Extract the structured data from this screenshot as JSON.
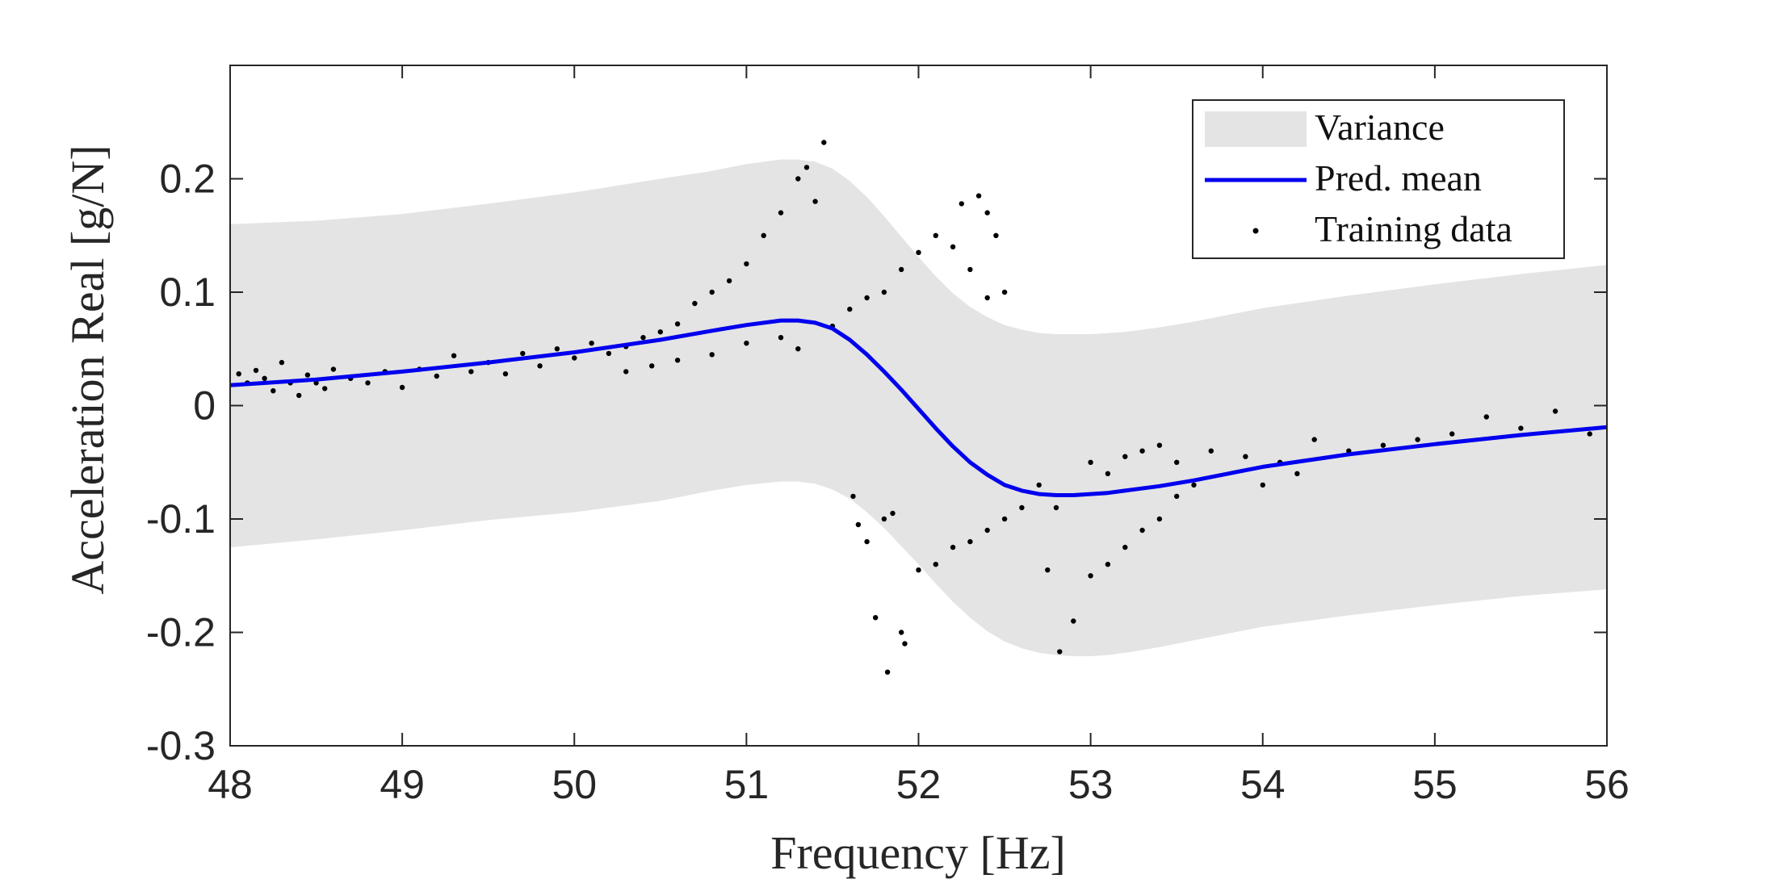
{
  "chart_data": {
    "type": "line",
    "title": "",
    "xlabel": "Frequency [Hz]",
    "ylabel": "Acceleration Real [g/N]",
    "xlim": [
      48,
      56
    ],
    "ylim": [
      -0.3,
      0.3
    ],
    "x_ticks": [
      48,
      49,
      50,
      51,
      52,
      53,
      54,
      55,
      56
    ],
    "y_ticks": [
      0.2,
      0.1,
      0,
      -0.1,
      -0.2,
      -0.3
    ],
    "y_tick_labels": [
      "0.2",
      "0.1",
      "0",
      "-0.1",
      "-0.2",
      "-0.3"
    ],
    "grid": false,
    "legend_position": "top-right",
    "colors": {
      "variance": "#e4e4e4",
      "mean": "#0000ee",
      "data": "#000000",
      "axes": "#262626"
    },
    "legend": [
      {
        "label": "Variance",
        "kind": "patch"
      },
      {
        "label": "Pred. mean",
        "kind": "line"
      },
      {
        "label": "Training data",
        "kind": "marker"
      }
    ],
    "series": [
      {
        "name": "Pred. mean",
        "x": [
          48.0,
          48.5,
          49.0,
          49.5,
          50.0,
          50.5,
          50.8,
          51.0,
          51.2,
          51.3,
          51.4,
          51.5,
          51.6,
          51.7,
          51.8,
          51.9,
          52.0,
          52.1,
          52.2,
          52.3,
          52.4,
          52.5,
          52.6,
          52.7,
          52.8,
          52.9,
          53.0,
          53.1,
          53.2,
          53.4,
          53.6,
          53.8,
          54.0,
          54.5,
          55.0,
          55.5,
          56.0
        ],
        "y": [
          0.018,
          0.023,
          0.03,
          0.038,
          0.047,
          0.058,
          0.066,
          0.071,
          0.075,
          0.075,
          0.073,
          0.068,
          0.058,
          0.045,
          0.03,
          0.014,
          -0.003,
          -0.02,
          -0.036,
          -0.05,
          -0.061,
          -0.07,
          -0.075,
          -0.078,
          -0.079,
          -0.079,
          -0.078,
          -0.077,
          -0.075,
          -0.071,
          -0.066,
          -0.06,
          -0.054,
          -0.043,
          -0.034,
          -0.026,
          -0.019
        ]
      },
      {
        "name": "Variance",
        "x": [
          48.0,
          48.5,
          49.0,
          49.5,
          50.0,
          50.5,
          50.8,
          51.0,
          51.2,
          51.3,
          51.4,
          51.5,
          51.6,
          51.7,
          51.8,
          51.9,
          52.0,
          52.1,
          52.2,
          52.3,
          52.4,
          52.5,
          52.6,
          52.7,
          52.8,
          52.9,
          53.0,
          53.1,
          53.2,
          53.4,
          53.6,
          53.8,
          54.0,
          54.5,
          55.0,
          55.5,
          56.0
        ],
        "upper": [
          0.16,
          0.163,
          0.169,
          0.178,
          0.188,
          0.2,
          0.207,
          0.213,
          0.217,
          0.217,
          0.215,
          0.209,
          0.198,
          0.184,
          0.167,
          0.149,
          0.131,
          0.114,
          0.099,
          0.087,
          0.078,
          0.071,
          0.067,
          0.064,
          0.063,
          0.063,
          0.063,
          0.064,
          0.065,
          0.069,
          0.074,
          0.08,
          0.086,
          0.097,
          0.107,
          0.116,
          0.124
        ],
        "lower": [
          -0.125,
          -0.118,
          -0.11,
          -0.101,
          -0.094,
          -0.084,
          -0.075,
          -0.07,
          -0.067,
          -0.067,
          -0.069,
          -0.074,
          -0.082,
          -0.094,
          -0.108,
          -0.124,
          -0.14,
          -0.157,
          -0.173,
          -0.187,
          -0.199,
          -0.208,
          -0.214,
          -0.218,
          -0.22,
          -0.221,
          -0.221,
          -0.22,
          -0.218,
          -0.213,
          -0.207,
          -0.201,
          -0.195,
          -0.185,
          -0.176,
          -0.168,
          -0.162
        ]
      },
      {
        "name": "Training data",
        "points": [
          [
            48.05,
            0.028
          ],
          [
            48.1,
            0.02
          ],
          [
            48.15,
            0.031
          ],
          [
            48.2,
            0.024
          ],
          [
            48.25,
            0.013
          ],
          [
            48.3,
            0.038
          ],
          [
            48.35,
            0.02
          ],
          [
            48.4,
            0.009
          ],
          [
            48.45,
            0.027
          ],
          [
            48.5,
            0.02
          ],
          [
            48.55,
            0.015
          ],
          [
            48.6,
            0.032
          ],
          [
            48.7,
            0.024
          ],
          [
            48.8,
            0.02
          ],
          [
            48.9,
            0.03
          ],
          [
            49.0,
            0.016
          ],
          [
            49.1,
            0.032
          ],
          [
            49.2,
            0.026
          ],
          [
            49.3,
            0.044
          ],
          [
            49.4,
            0.03
          ],
          [
            49.5,
            0.038
          ],
          [
            49.6,
            0.028
          ],
          [
            49.7,
            0.046
          ],
          [
            49.8,
            0.035
          ],
          [
            49.9,
            0.05
          ],
          [
            50.0,
            0.042
          ],
          [
            50.1,
            0.055
          ],
          [
            50.2,
            0.046
          ],
          [
            50.3,
            0.052
          ],
          [
            50.4,
            0.06
          ],
          [
            50.5,
            0.065
          ],
          [
            50.6,
            0.072
          ],
          [
            50.7,
            0.09
          ],
          [
            50.8,
            0.1
          ],
          [
            50.9,
            0.11
          ],
          [
            51.0,
            0.125
          ],
          [
            51.1,
            0.15
          ],
          [
            51.2,
            0.17
          ],
          [
            51.3,
            0.2
          ],
          [
            51.35,
            0.21
          ],
          [
            51.4,
            0.18
          ],
          [
            51.45,
            0.232
          ],
          [
            50.3,
            0.03
          ],
          [
            50.45,
            0.035
          ],
          [
            50.6,
            0.04
          ],
          [
            50.8,
            0.045
          ],
          [
            51.0,
            0.055
          ],
          [
            51.2,
            0.06
          ],
          [
            51.3,
            0.05
          ],
          [
            51.5,
            0.07
          ],
          [
            51.6,
            0.085
          ],
          [
            51.7,
            0.095
          ],
          [
            51.8,
            0.1
          ],
          [
            51.9,
            0.12
          ],
          [
            52.0,
            0.135
          ],
          [
            52.1,
            0.15
          ],
          [
            52.2,
            0.14
          ],
          [
            52.3,
            0.12
          ],
          [
            52.4,
            0.095
          ],
          [
            52.5,
            0.1
          ],
          [
            52.25,
            0.178
          ],
          [
            52.35,
            0.185
          ],
          [
            52.4,
            0.17
          ],
          [
            52.45,
            0.15
          ],
          [
            51.62,
            -0.08
          ],
          [
            51.65,
            -0.105
          ],
          [
            51.7,
            -0.12
          ],
          [
            51.75,
            -0.187
          ],
          [
            51.8,
            -0.1
          ],
          [
            51.85,
            -0.095
          ],
          [
            51.9,
            -0.2
          ],
          [
            51.92,
            -0.21
          ],
          [
            51.82,
            -0.235
          ],
          [
            52.0,
            -0.145
          ],
          [
            52.1,
            -0.14
          ],
          [
            52.2,
            -0.125
          ],
          [
            52.3,
            -0.12
          ],
          [
            52.4,
            -0.11
          ],
          [
            52.5,
            -0.1
          ],
          [
            52.6,
            -0.09
          ],
          [
            52.7,
            -0.07
          ],
          [
            52.8,
            -0.09
          ],
          [
            52.75,
            -0.145
          ],
          [
            52.82,
            -0.217
          ],
          [
            52.9,
            -0.19
          ],
          [
            53.0,
            -0.15
          ],
          [
            53.1,
            -0.14
          ],
          [
            53.2,
            -0.125
          ],
          [
            53.3,
            -0.11
          ],
          [
            53.4,
            -0.1
          ],
          [
            53.5,
            -0.08
          ],
          [
            53.6,
            -0.07
          ],
          [
            53.0,
            -0.05
          ],
          [
            53.1,
            -0.06
          ],
          [
            53.2,
            -0.045
          ],
          [
            53.3,
            -0.04
          ],
          [
            53.4,
            -0.035
          ],
          [
            53.5,
            -0.05
          ],
          [
            53.7,
            -0.04
          ],
          [
            53.9,
            -0.045
          ],
          [
            54.0,
            -0.07
          ],
          [
            54.1,
            -0.05
          ],
          [
            54.2,
            -0.06
          ],
          [
            54.3,
            -0.03
          ],
          [
            54.5,
            -0.04
          ],
          [
            54.7,
            -0.035
          ],
          [
            54.9,
            -0.03
          ],
          [
            55.1,
            -0.025
          ],
          [
            55.3,
            -0.01
          ],
          [
            55.5,
            -0.02
          ],
          [
            55.7,
            -0.005
          ],
          [
            55.9,
            -0.025
          ]
        ]
      }
    ]
  }
}
